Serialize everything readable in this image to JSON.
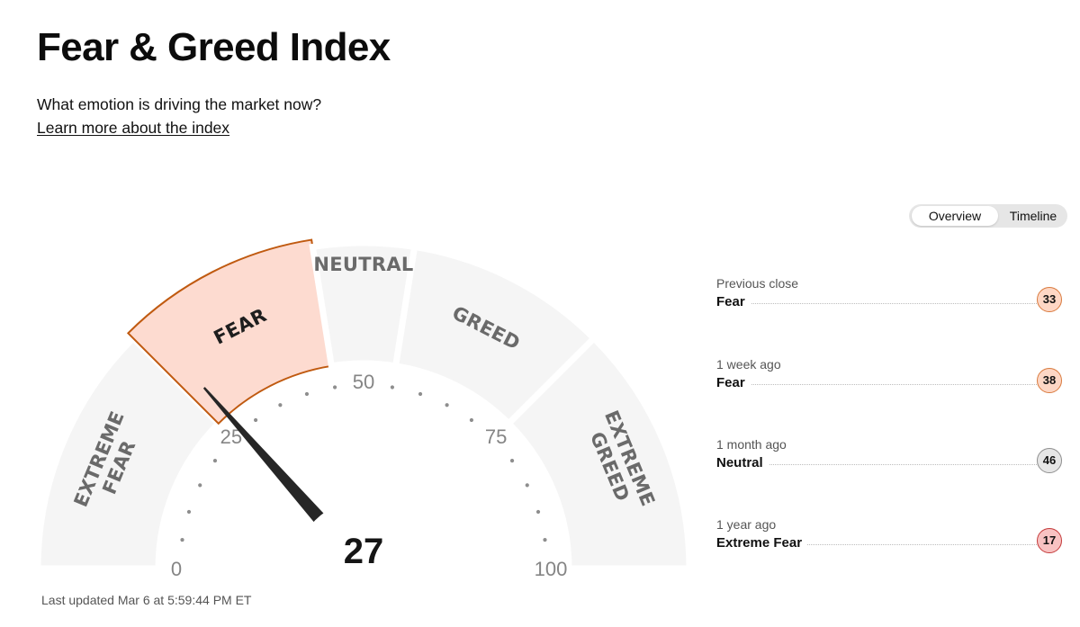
{
  "header": {
    "title": "Fear & Greed Index",
    "subtitle": "What emotion is driving the market now?",
    "learn_more": "Learn more about the index"
  },
  "toggle": {
    "options": [
      "Overview",
      "Timeline"
    ],
    "selected": "Overview"
  },
  "gauge": {
    "value": 27,
    "min": 0,
    "max": 100,
    "active_segment": "Fear",
    "segments": [
      {
        "name": "Extreme Fear",
        "lines": [
          "EXTREME",
          "FEAR"
        ],
        "from": 0,
        "to": 25
      },
      {
        "name": "Fear",
        "lines": [
          "FEAR"
        ],
        "from": 25,
        "to": 45
      },
      {
        "name": "Neutral",
        "lines": [
          "NEUTRAL"
        ],
        "from": 45,
        "to": 55
      },
      {
        "name": "Greed",
        "lines": [
          "GREED"
        ],
        "from": 55,
        "to": 75
      },
      {
        "name": "Extreme Greed",
        "lines": [
          "EXTREME",
          "GREED"
        ],
        "from": 75,
        "to": 100
      }
    ],
    "tick_labels": [
      "0",
      "25",
      "50",
      "75",
      "100"
    ],
    "colors": {
      "active_fill": "#fddbd0",
      "active_stroke": "#c05a10",
      "segment_fill": "#f5f5f5"
    }
  },
  "last_updated": "Last updated Mar 6 at 5:59:44 PM ET",
  "history": [
    {
      "label": "Previous close",
      "rating": "Fear",
      "value": 33,
      "badge_color": "#fdd7c5",
      "badge_border": "#d97a3e"
    },
    {
      "label": "1 week ago",
      "rating": "Fear",
      "value": 38,
      "badge_color": "#fdd7c5",
      "badge_border": "#d97a3e"
    },
    {
      "label": "1 month ago",
      "rating": "Neutral",
      "value": 46,
      "badge_color": "#e6e6e6",
      "badge_border": "#8f8f8f"
    },
    {
      "label": "1 year ago",
      "rating": "Extreme Fear",
      "value": 17,
      "badge_color": "#f8c2c2",
      "badge_border": "#c43a3a"
    }
  ]
}
